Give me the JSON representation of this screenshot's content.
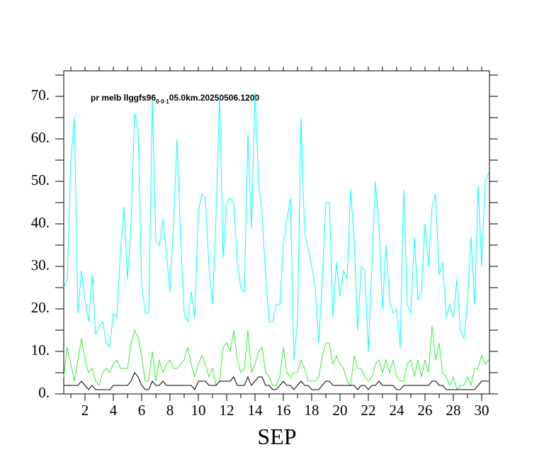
{
  "chart_data": {
    "type": "line",
    "title": {
      "main": "pr melb llggfs96",
      "sub": "0·0·1",
      "rest": "05.0km.20250506.1200"
    },
    "xlabel": "SEP",
    "x": [
      0.5,
      0.75,
      1,
      1.25,
      1.5,
      1.75,
      2,
      2.25,
      2.5,
      2.75,
      3,
      3.25,
      3.5,
      3.75,
      4,
      4.25,
      4.5,
      4.75,
      5,
      5.25,
      5.5,
      5.75,
      6,
      6.25,
      6.5,
      6.75,
      7,
      7.25,
      7.5,
      7.75,
      8,
      8.25,
      8.5,
      8.75,
      9,
      9.25,
      9.5,
      9.75,
      10,
      10.25,
      10.5,
      10.75,
      11,
      11.25,
      11.5,
      11.75,
      12,
      12.25,
      12.5,
      12.75,
      13,
      13.25,
      13.5,
      13.75,
      14,
      14.25,
      14.5,
      14.75,
      15,
      15.25,
      15.5,
      15.75,
      16,
      16.25,
      16.5,
      16.75,
      17,
      17.25,
      17.5,
      17.75,
      18,
      18.25,
      18.5,
      18.75,
      19,
      19.25,
      19.5,
      19.75,
      20,
      20.25,
      20.5,
      20.75,
      21,
      21.25,
      21.5,
      21.75,
      22,
      22.25,
      22.5,
      22.75,
      23,
      23.25,
      23.5,
      23.75,
      24,
      24.25,
      24.5,
      24.75,
      25,
      25.25,
      25.5,
      25.75,
      26,
      26.25,
      26.5,
      26.75,
      27,
      27.25,
      27.5,
      27.75,
      28,
      28.25,
      28.5,
      28.75,
      29,
      29.25,
      29.5,
      29.75,
      30,
      30.25,
      30.5
    ],
    "series": [
      {
        "color": "#00ffff",
        "values": [
          25,
          27,
          55,
          65,
          19,
          29,
          22,
          17,
          28,
          14,
          16,
          17,
          12,
          11,
          19,
          18,
          33,
          44,
          27,
          40,
          66,
          62,
          26,
          19,
          19,
          69,
          36,
          35,
          41,
          33,
          24,
          40,
          60,
          37,
          19,
          17,
          24,
          18,
          43,
          47,
          46,
          30,
          21,
          42,
          70,
          32,
          45,
          46,
          45,
          31,
          25,
          24,
          61,
          39,
          71,
          50,
          42,
          28,
          17,
          17,
          21,
          21,
          35,
          41,
          46,
          8,
          17,
          65,
          38,
          34,
          30,
          25,
          12,
          27,
          45,
          45,
          18,
          31,
          23,
          29,
          27,
          48,
          36,
          15,
          30,
          29,
          10,
          30,
          50,
          39,
          20,
          35,
          22,
          19,
          20,
          11,
          48,
          21,
          19,
          37,
          22,
          24,
          40,
          30,
          44,
          47,
          28,
          31,
          18,
          21,
          18,
          27,
          15,
          13,
          22,
          37,
          21,
          49,
          30,
          50,
          52
        ]
      },
      {
        "color": "#33ee33",
        "values": [
          4,
          11,
          7,
          3,
          8,
          13,
          8,
          5,
          6,
          3,
          2,
          5,
          6,
          5,
          7,
          8,
          6,
          6,
          6,
          12,
          15,
          13,
          9,
          3,
          3,
          10,
          3,
          8,
          5,
          7,
          8,
          6,
          6,
          7,
          8,
          11,
          7,
          4,
          7,
          9,
          7,
          4,
          6,
          2,
          3,
          11,
          12,
          10,
          15,
          8,
          5,
          6,
          15,
          5,
          7,
          10,
          11,
          5,
          4,
          2,
          2,
          4,
          11,
          5,
          4,
          5,
          5,
          8,
          6,
          3,
          3,
          3,
          4,
          9,
          12,
          12,
          7,
          9,
          7,
          6,
          3,
          2,
          9,
          6,
          6,
          4,
          3,
          4,
          7,
          8,
          5,
          8,
          5,
          8,
          4,
          3,
          3,
          7,
          8,
          4,
          8,
          4,
          8,
          5,
          16,
          8,
          12,
          5,
          4,
          2,
          4,
          1,
          2,
          2,
          4,
          2,
          6,
          6,
          9,
          7,
          8
        ]
      },
      {
        "color": "#000000",
        "values": [
          2,
          2,
          2,
          2,
          2,
          3,
          2,
          1,
          2,
          1,
          1,
          1,
          1,
          1,
          2,
          2,
          2,
          2,
          2,
          3,
          5,
          4,
          2,
          1,
          1,
          3,
          2,
          2,
          3,
          2,
          2,
          2,
          2,
          2,
          2,
          2,
          2,
          1,
          3,
          3,
          3,
          2,
          2,
          2,
          3,
          3,
          3,
          3,
          4,
          2,
          2,
          2,
          4,
          2,
          3,
          4,
          4,
          2,
          2,
          1,
          1,
          2,
          3,
          2,
          2,
          1,
          2,
          3,
          2,
          2,
          1,
          1,
          1,
          2,
          3,
          3,
          2,
          2,
          2,
          2,
          2,
          2,
          2,
          1,
          2,
          2,
          1,
          2,
          2,
          3,
          2,
          2,
          2,
          2,
          1,
          1,
          2,
          2,
          2,
          2,
          2,
          2,
          2,
          2,
          3,
          3,
          2,
          2,
          1,
          1,
          1,
          1,
          1,
          1,
          1,
          1,
          1,
          2,
          3,
          3,
          3
        ]
      }
    ],
    "xlim": [
      0.5,
      30.55
    ],
    "ylim": [
      0,
      76
    ],
    "xticks": [
      2,
      4,
      6,
      8,
      10,
      12,
      14,
      16,
      18,
      20,
      22,
      24,
      26,
      28,
      30
    ],
    "xminorticks": [
      1,
      3,
      5,
      7,
      9,
      11,
      13,
      15,
      17,
      19,
      21,
      23,
      25,
      27,
      29
    ],
    "yticks": [
      {
        "value": 0,
        "label": "0."
      },
      {
        "value": 10,
        "label": "10."
      },
      {
        "value": 20,
        "label": "20."
      },
      {
        "value": 30,
        "label": "30."
      },
      {
        "value": 40,
        "label": "40."
      },
      {
        "value": 50,
        "label": "50."
      },
      {
        "value": 60,
        "label": "60."
      },
      {
        "value": 70,
        "label": "70."
      }
    ],
    "yminorticks": [
      5,
      15,
      25,
      35,
      45,
      55,
      65,
      75
    ]
  }
}
